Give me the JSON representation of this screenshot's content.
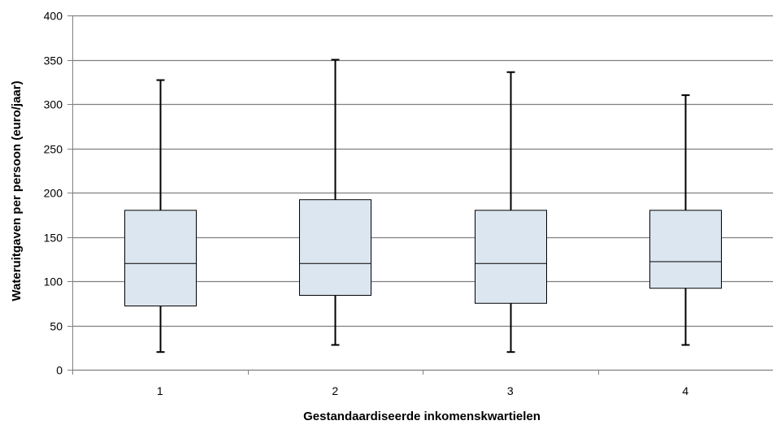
{
  "chart_data": {
    "type": "boxplot",
    "title": "",
    "xlabel": "Gestandaardiseerde inkomenskwartielen",
    "ylabel": "Wateruitgaven per persoon (euro/jaar)",
    "ylim": [
      0,
      400
    ],
    "yticks": [
      0,
      50,
      100,
      150,
      200,
      250,
      300,
      350,
      400
    ],
    "categories": [
      "1",
      "2",
      "3",
      "4"
    ],
    "grid": "horizontal",
    "legend": "none",
    "boxes": [
      {
        "category": "1",
        "min": 20,
        "q1": 72,
        "median": 120,
        "q3": 180,
        "max": 327
      },
      {
        "category": "2",
        "min": 28,
        "q1": 84,
        "median": 120,
        "q3": 192,
        "max": 350
      },
      {
        "category": "3",
        "min": 20,
        "q1": 75,
        "median": 120,
        "q3": 180,
        "max": 336
      },
      {
        "category": "4",
        "min": 28,
        "q1": 92,
        "median": 122,
        "q3": 180,
        "max": 310
      }
    ],
    "colors": {
      "box_fill": "#dce6f1",
      "box_stroke": "#000000",
      "grid": "#808080",
      "whisker": "#000000"
    }
  }
}
